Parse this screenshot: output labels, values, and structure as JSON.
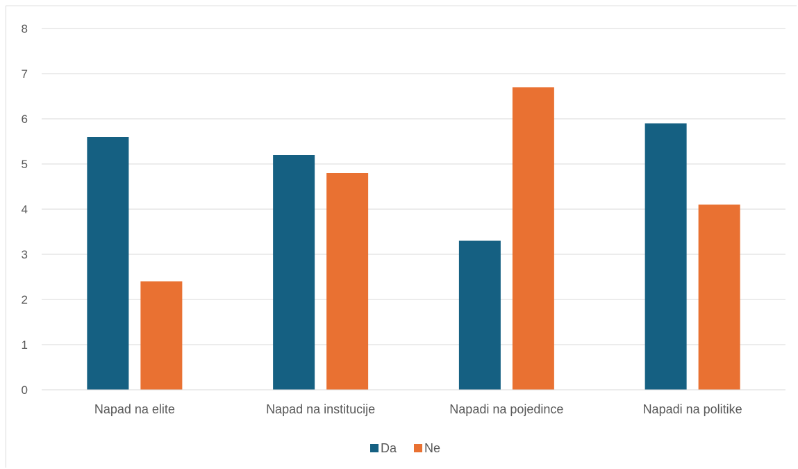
{
  "chart_data": {
    "type": "bar",
    "title": "",
    "xlabel": "",
    "ylabel": "",
    "categories": [
      "Napad na elite",
      "Napad na institucije",
      "Napadi na pojedince",
      "Napadi na politike"
    ],
    "series": [
      {
        "name": "Da",
        "color": "#156082",
        "values": [
          5.6,
          5.2,
          3.3,
          5.9
        ]
      },
      {
        "name": "Ne",
        "color": "#E97132",
        "values": [
          2.4,
          4.8,
          6.7,
          4.1
        ]
      }
    ],
    "ylim": [
      0,
      8
    ],
    "yticks": [
      "0",
      "1",
      "2",
      "3",
      "4",
      "5",
      "6",
      "7",
      "8"
    ],
    "grid": true,
    "legend_position": "bottom"
  }
}
